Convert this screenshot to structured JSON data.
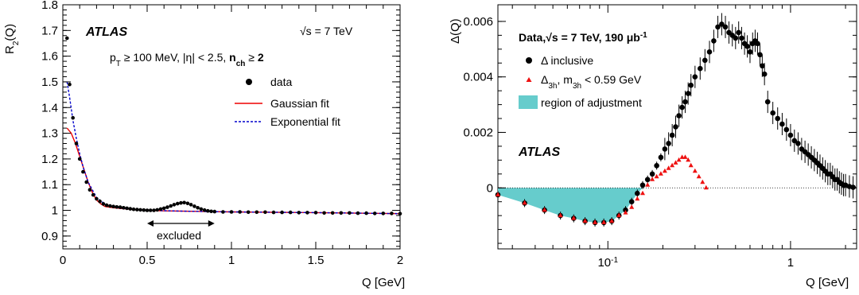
{
  "chart_data": [
    {
      "type": "scatter",
      "name": "left",
      "xlabel": "Q [GeV]",
      "ylabel": "R_2(Q)",
      "xlim": [
        0,
        2
      ],
      "ylim": [
        0.85,
        1.8
      ],
      "xticks": [
        "0",
        "0.5",
        "1",
        "1.5",
        "2"
      ],
      "yticks": [
        "0.9",
        "1",
        "1.1",
        "1.2",
        "1.3",
        "1.4",
        "1.5",
        "1.6",
        "1.7",
        "1.8"
      ],
      "atlas_label": "ATLAS",
      "energy": "√s = 7 TeV",
      "cuts": "p_T ≥ 100 MeV, |η| < 2.5, n_ch ≥ 2",
      "excluded_label": "excluded",
      "excluded_range": [
        0.5,
        0.9
      ],
      "legend": [
        "data",
        "Gaussian fit",
        "Exponential fit"
      ],
      "series": [
        {
          "name": "data",
          "color": "#000000",
          "x": [
            0.025,
            0.04,
            0.06,
            0.08,
            0.1,
            0.12,
            0.14,
            0.16,
            0.18,
            0.2,
            0.22,
            0.24,
            0.26,
            0.28,
            0.3,
            0.32,
            0.34,
            0.36,
            0.38,
            0.4,
            0.42,
            0.44,
            0.46,
            0.48,
            0.5,
            0.52,
            0.54,
            0.56,
            0.58,
            0.6,
            0.62,
            0.64,
            0.66,
            0.68,
            0.7,
            0.72,
            0.74,
            0.76,
            0.78,
            0.8,
            0.82,
            0.84,
            0.86,
            0.88,
            0.9,
            0.95,
            1.0,
            1.05,
            1.1,
            1.15,
            1.2,
            1.25,
            1.3,
            1.35,
            1.4,
            1.45,
            1.5,
            1.55,
            1.6,
            1.65,
            1.7,
            1.75,
            1.8,
            1.85,
            1.9,
            1.95,
            2.0
          ],
          "y": [
            1.67,
            1.49,
            1.36,
            1.26,
            1.2,
            1.15,
            1.11,
            1.08,
            1.06,
            1.045,
            1.035,
            1.025,
            1.02,
            1.017,
            1.015,
            1.013,
            1.012,
            1.01,
            1.008,
            1.006,
            1.004,
            1.003,
            1.002,
            1.001,
            1.0,
            1.0,
            1.0,
            1.002,
            1.005,
            1.008,
            1.012,
            1.017,
            1.022,
            1.026,
            1.029,
            1.03,
            1.027,
            1.022,
            1.016,
            1.01,
            1.005,
            1.001,
            0.998,
            0.996,
            0.995,
            0.994,
            0.994,
            0.994,
            0.993,
            0.993,
            0.993,
            0.992,
            0.992,
            0.992,
            0.991,
            0.991,
            0.991,
            0.99,
            0.99,
            0.99,
            0.99,
            0.989,
            0.989,
            0.988,
            0.988,
            0.988,
            0.987
          ]
        },
        {
          "name": "Gaussian fit",
          "color": "#ee0000",
          "x": [
            0.025,
            0.05,
            0.075,
            0.1,
            0.125,
            0.15,
            0.175,
            0.2,
            0.225,
            0.25,
            0.3,
            0.35,
            0.4,
            0.5,
            0.6,
            0.8,
            1.0,
            1.5,
            2.0
          ],
          "y": [
            1.32,
            1.3,
            1.26,
            1.21,
            1.16,
            1.11,
            1.07,
            1.04,
            1.025,
            1.015,
            1.01,
            1.007,
            1.004,
            1.0,
            0.998,
            0.996,
            0.994,
            0.991,
            0.987
          ]
        },
        {
          "name": "Exponential fit",
          "color": "#0000cc",
          "x": [
            0.025,
            0.04,
            0.06,
            0.08,
            0.1,
            0.12,
            0.15,
            0.2,
            0.25,
            0.3,
            0.4,
            0.5,
            0.7,
            1.0,
            1.5,
            2.0
          ],
          "y": [
            1.5,
            1.44,
            1.35,
            1.28,
            1.22,
            1.17,
            1.11,
            1.05,
            1.025,
            1.013,
            1.004,
            1.0,
            0.997,
            0.994,
            0.991,
            0.987
          ]
        }
      ]
    },
    {
      "type": "scatter",
      "name": "right",
      "xlabel": "Q [GeV]",
      "ylabel": "Δ(Q)",
      "xscale": "log",
      "xlim": [
        0.025,
        2.3
      ],
      "ylim": [
        -0.0022,
        0.0066
      ],
      "xticks": [
        "10^-1",
        "1"
      ],
      "yticks": [
        "0",
        "0.002",
        "0.004",
        "0.006"
      ],
      "atlas_label": "ATLAS",
      "header": "Data, √s = 7 TeV, 190 μb^-1",
      "legend": [
        "Δ inclusive",
        "Δ_3h, m_3h < 0.59 GeV",
        "region of adjustment"
      ],
      "colors": {
        "region": "#66cccc",
        "triangles": "#ee1111",
        "data": "#000000"
      },
      "series": [
        {
          "name": "Δ inclusive",
          "x": [
            0.025,
            0.035,
            0.045,
            0.055,
            0.065,
            0.075,
            0.085,
            0.095,
            0.105,
            0.115,
            0.125,
            0.135,
            0.145,
            0.155,
            0.165,
            0.175,
            0.185,
            0.195,
            0.205,
            0.215,
            0.225,
            0.235,
            0.245,
            0.255,
            0.265,
            0.275,
            0.285,
            0.3,
            0.32,
            0.34,
            0.36,
            0.38,
            0.4,
            0.42,
            0.44,
            0.46,
            0.48,
            0.5,
            0.52,
            0.54,
            0.56,
            0.58,
            0.6,
            0.62,
            0.64,
            0.66,
            0.68,
            0.7,
            0.72,
            0.75,
            0.8,
            0.85,
            0.9,
            0.95,
            1.0,
            1.05,
            1.1,
            1.15,
            1.2,
            1.25,
            1.3,
            1.35,
            1.4,
            1.45,
            1.5,
            1.55,
            1.6,
            1.65,
            1.7,
            1.75,
            1.8,
            1.85,
            1.9,
            1.95,
            2.0,
            2.1,
            2.2
          ],
          "y": [
            -0.00025,
            -0.00055,
            -0.0008,
            -0.001,
            -0.0011,
            -0.0012,
            -0.00125,
            -0.00125,
            -0.0012,
            -0.001,
            -0.0008,
            -0.0005,
            -0.0002,
            0.0001,
            0.0003,
            0.0005,
            0.0008,
            0.0011,
            0.0014,
            0.0016,
            0.0019,
            0.0022,
            0.0026,
            0.0029,
            0.0031,
            0.0034,
            0.0037,
            0.004,
            0.0043,
            0.0046,
            0.0049,
            0.0053,
            0.0058,
            0.0059,
            0.0058,
            0.0056,
            0.0055,
            0.0054,
            0.0056,
            0.0054,
            0.0052,
            0.0051,
            0.0049,
            0.0052,
            0.0053,
            0.0052,
            0.0048,
            0.0044,
            0.0041,
            0.0031,
            0.0027,
            0.0025,
            0.0023,
            0.0021,
            0.0019,
            0.0017,
            0.0016,
            0.0014,
            0.0013,
            0.0012,
            0.0011,
            0.001,
            0.0009,
            0.0008,
            0.0007,
            0.0006,
            0.0005,
            0.0005,
            0.0004,
            0.0003,
            0.0003,
            0.0002,
            0.00015,
            0.0001,
            0.0001,
            5e-05,
            2e-05
          ]
        },
        {
          "name": "Δ_3h, m_3h < 0.59 GeV",
          "x": [
            0.025,
            0.035,
            0.045,
            0.055,
            0.065,
            0.075,
            0.085,
            0.095,
            0.105,
            0.115,
            0.125,
            0.135,
            0.145,
            0.155,
            0.165,
            0.175,
            0.185,
            0.195,
            0.205,
            0.215,
            0.225,
            0.235,
            0.245,
            0.255,
            0.265,
            0.275,
            0.285,
            0.3,
            0.315,
            0.33,
            0.345
          ],
          "y": [
            -0.00025,
            -0.00055,
            -0.0008,
            -0.001,
            -0.0011,
            -0.0012,
            -0.00125,
            -0.00125,
            -0.0012,
            -0.001,
            -0.0009,
            -0.0007,
            -0.0004,
            -0.0002,
            0.0001,
            0.0003,
            0.0004,
            0.0005,
            0.0006,
            0.0007,
            0.0008,
            0.0009,
            0.001,
            0.0011,
            0.0011,
            0.001,
            0.0008,
            0.0006,
            0.0004,
            0.0002,
            0.0
          ]
        }
      ]
    }
  ]
}
